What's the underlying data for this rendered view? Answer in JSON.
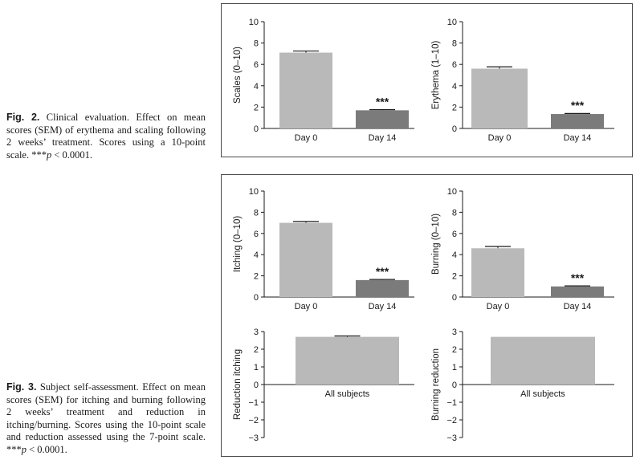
{
  "figure2_caption": {
    "label": "Fig. 2.",
    "text": " Clinical evaluation. Effect on mean scores (SEM) of erythema and scaling following 2 weeks’ treatment. Scores using a 10-point scale. ***",
    "p": "p",
    "tail": " < 0.0001."
  },
  "figure3_caption": {
    "label": "Fig. 3.",
    "text": " Subject self-assessment. Effect on mean scores (SEM) for itching and burning following 2 weeks’ treatment and reduction in itching/burning. Scores using the 10-point scale and reduction assessed using the 7-point scale. ***",
    "p": "p",
    "tail": " < 0.0001."
  },
  "colors": {
    "light_bar": "#b9b9b9",
    "dark_bar": "#7b7b7b",
    "axis": "#1a1a1a"
  },
  "chart_data": [
    {
      "id": "scales",
      "type": "bar",
      "ylabel": "Scales (0–10)",
      "ylim": [
        0,
        10
      ],
      "yticks": [
        0,
        2,
        4,
        6,
        8,
        10
      ],
      "categories": [
        "Day 0",
        "Day 14"
      ],
      "values": [
        7.1,
        1.7
      ],
      "errors": [
        0.15,
        0.06
      ],
      "annotations": [
        "",
        "***"
      ]
    },
    {
      "id": "erythema",
      "type": "bar",
      "ylabel": "Erythema (1–10)",
      "ylim": [
        0,
        10
      ],
      "yticks": [
        0,
        2,
        4,
        6,
        8,
        10
      ],
      "categories": [
        "Day 0",
        "Day 14"
      ],
      "values": [
        5.6,
        1.35
      ],
      "errors": [
        0.17,
        0.05
      ],
      "annotations": [
        "",
        "***"
      ]
    },
    {
      "id": "itching",
      "type": "bar",
      "ylabel": "Itching (0–10)",
      "ylim": [
        0,
        10
      ],
      "yticks": [
        0,
        2,
        4,
        6,
        8,
        10
      ],
      "categories": [
        "Day 0",
        "Day 14"
      ],
      "values": [
        7.0,
        1.6
      ],
      "errors": [
        0.13,
        0.06
      ],
      "annotations": [
        "",
        "***"
      ]
    },
    {
      "id": "burning",
      "type": "bar",
      "ylabel": "Burning (0–10)",
      "ylim": [
        0,
        10
      ],
      "yticks": [
        0,
        2,
        4,
        6,
        8,
        10
      ],
      "categories": [
        "Day 0",
        "Day 14"
      ],
      "values": [
        4.6,
        1.0
      ],
      "errors": [
        0.17,
        0.05
      ],
      "annotations": [
        "",
        "***"
      ]
    },
    {
      "id": "reduction-itching",
      "type": "bar",
      "ylabel": "Reduction itching",
      "ylim": [
        -3,
        3
      ],
      "yticks": [
        -3,
        -2,
        -1,
        0,
        1,
        2,
        3
      ],
      "categories": [
        "All subjects"
      ],
      "values": [
        2.7
      ],
      "errors": [
        0.05
      ],
      "annotations": [
        ""
      ]
    },
    {
      "id": "burning-reduction",
      "type": "bar",
      "ylabel": "Burning reduction",
      "ylim": [
        -3,
        3
      ],
      "yticks": [
        -3,
        -2,
        -1,
        0,
        1,
        2,
        3
      ],
      "categories": [
        "All subjects"
      ],
      "values": [
        2.7
      ],
      "errors": [
        0
      ],
      "annotations": [
        ""
      ]
    }
  ]
}
